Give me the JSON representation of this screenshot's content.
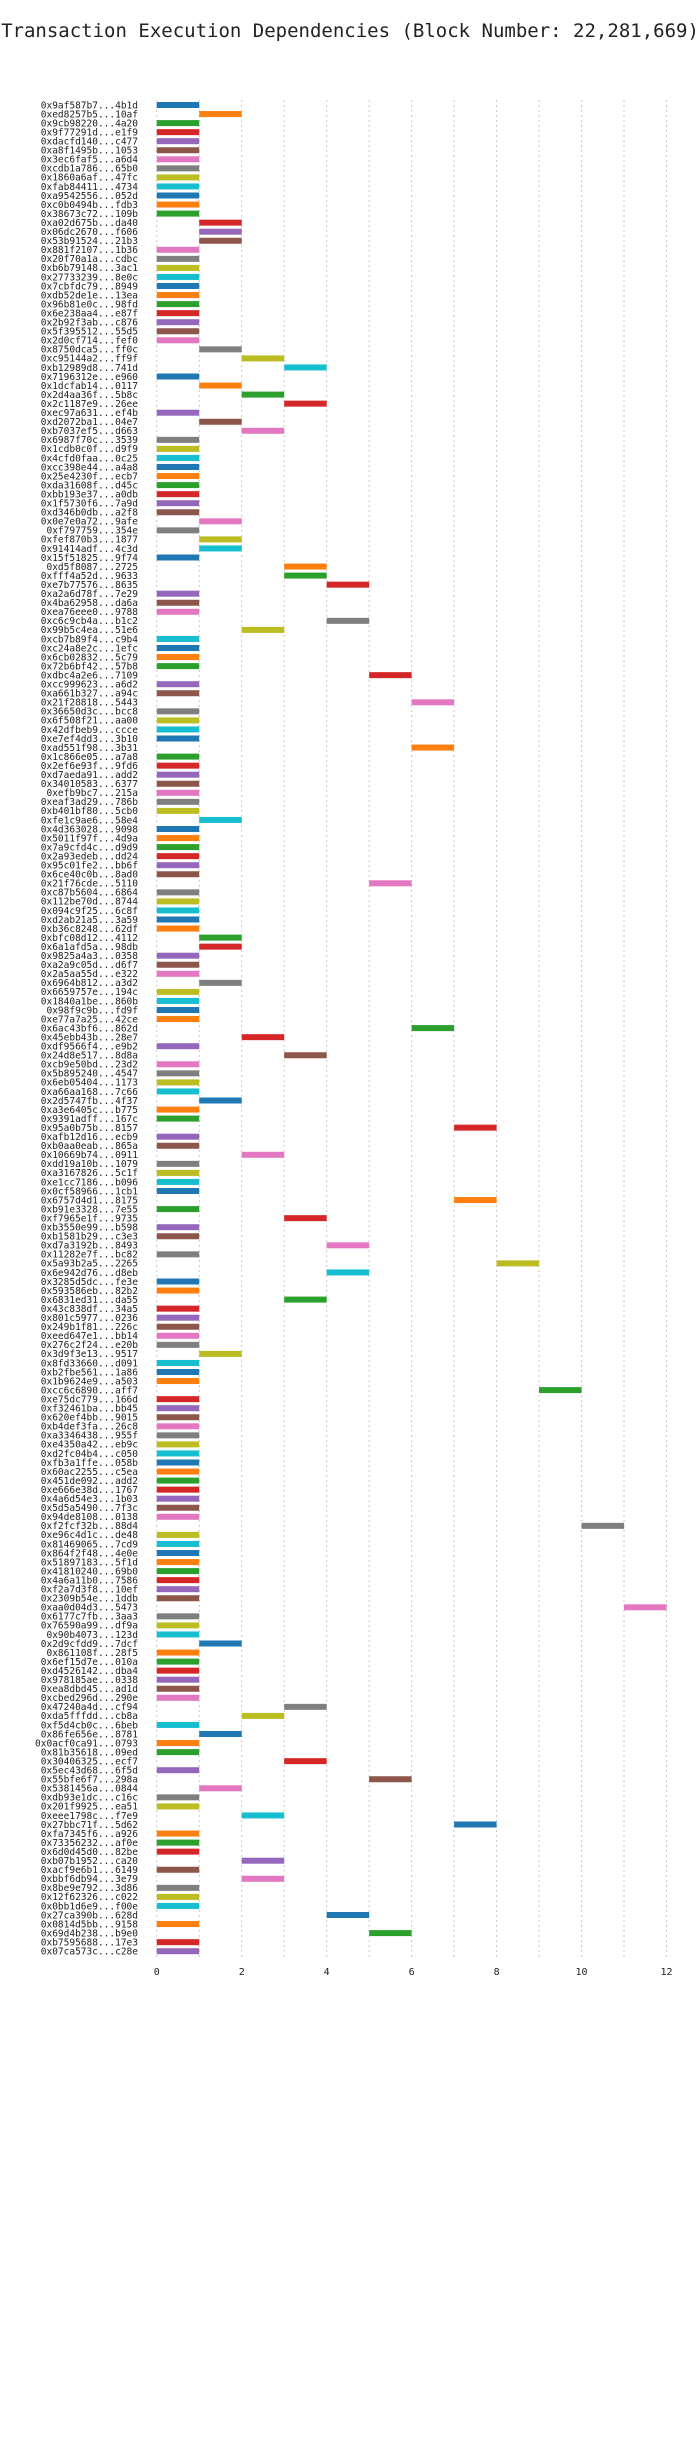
{
  "chart_data": {
    "type": "bar",
    "orientation": "horizontal-gantt",
    "title": "Transaction Execution Dependencies (Block Number: 22,281,669)",
    "xlabel": "",
    "ylabel": "",
    "xlim": [
      -0.3,
      12.6
    ],
    "xticks": [
      0,
      2,
      4,
      6,
      8,
      10,
      12
    ],
    "grid": true,
    "bar_width": 1,
    "palette": [
      "#1f77b4",
      "#ff7f0e",
      "#2ca02c",
      "#d62728",
      "#9467bd",
      "#8c564b",
      "#e377c2",
      "#7f7f7f",
      "#bcbd22",
      "#17becf"
    ],
    "transactions": [
      {
        "label": "0x9af587b7...4b1d",
        "start": 0
      },
      {
        "label": "0xed8257b5...10af",
        "start": 1
      },
      {
        "label": "0x9cb98220...4a20",
        "start": 0
      },
      {
        "label": "0x9f77291d...e1f9",
        "start": 0
      },
      {
        "label": "0xdacfd140...c477",
        "start": 0
      },
      {
        "label": "0xa8f1495b...1053",
        "start": 0
      },
      {
        "label": "0x3ec6faf5...a6d4",
        "start": 0
      },
      {
        "label": "0xcdb1a786...65b0",
        "start": 0
      },
      {
        "label": "0x1860a6af...47fc",
        "start": 0
      },
      {
        "label": "0xfab84411...4734",
        "start": 0
      },
      {
        "label": "0xa9542556...052d",
        "start": 0
      },
      {
        "label": "0xc0b0494b...fdb3",
        "start": 0
      },
      {
        "label": "0x38673c72...109b",
        "start": 0
      },
      {
        "label": "0xa02d675b...da40",
        "start": 1
      },
      {
        "label": "0x06dc2670...f606",
        "start": 1
      },
      {
        "label": "0x53b91524...21b3",
        "start": 1
      },
      {
        "label": "0x881f2107...1b36",
        "start": 0
      },
      {
        "label": "0x20f70a1a...cdbc",
        "start": 0
      },
      {
        "label": "0xb6b79148...3ac1",
        "start": 0
      },
      {
        "label": "0x27733239...8e0c",
        "start": 0
      },
      {
        "label": "0x7cbfdc79...8949",
        "start": 0
      },
      {
        "label": "0xdb52de1e...13ea",
        "start": 0
      },
      {
        "label": "0x96b81e0c...98fd",
        "start": 0
      },
      {
        "label": "0x6e238aa4...e87f",
        "start": 0
      },
      {
        "label": "0x2b92f3ab...c876",
        "start": 0
      },
      {
        "label": "0x5f395512...55d5",
        "start": 0
      },
      {
        "label": "0x2d0cf714...fef0",
        "start": 0
      },
      {
        "label": "0x8750dca5...ff0c",
        "start": 1
      },
      {
        "label": "0xc95144a2...ff9f",
        "start": 2
      },
      {
        "label": "0xb12989d8...741d",
        "start": 3
      },
      {
        "label": "0x7196312e...e960",
        "start": 0
      },
      {
        "label": "0x1dcfab14...0117",
        "start": 1
      },
      {
        "label": "0x2d4aa36f...5b8c",
        "start": 2
      },
      {
        "label": "0x2c1187e9...26ee",
        "start": 3
      },
      {
        "label": "0xec97a631...ef4b",
        "start": 0
      },
      {
        "label": "0xd2072ba1...04e7",
        "start": 1
      },
      {
        "label": "0xb7037ef5...d663",
        "start": 2
      },
      {
        "label": "0x6987f70c...3539",
        "start": 0
      },
      {
        "label": "0x1cdb0c0f...d9f9",
        "start": 0
      },
      {
        "label": "0x4cfd0faa...0c25",
        "start": 0
      },
      {
        "label": "0xcc398e44...a4a8",
        "start": 0
      },
      {
        "label": "0x25e4230f...ecb7",
        "start": 0
      },
      {
        "label": "0xda31608f...d45c",
        "start": 0
      },
      {
        "label": "0xbb193e37...a0db",
        "start": 0
      },
      {
        "label": "0x1f5730f6...7a9d",
        "start": 0
      },
      {
        "label": "0xd346b0db...a2f8",
        "start": 0
      },
      {
        "label": "0x0e7e0a72...9afe",
        "start": 1
      },
      {
        "label": "0xf797759...354e",
        "start": 0
      },
      {
        "label": "0xfef870b3...1877",
        "start": 1
      },
      {
        "label": "0x91414adf...4c3d",
        "start": 1
      },
      {
        "label": "0x15f51825...9f74",
        "start": 0
      },
      {
        "label": "0xd5f8087...2725",
        "start": 3
      },
      {
        "label": "0xfff4a52d...9633",
        "start": 3
      },
      {
        "label": "0xe7b77576...8635",
        "start": 4
      },
      {
        "label": "0xa2a6d78f...7e29",
        "start": 0
      },
      {
        "label": "0x4ba62958...da6a",
        "start": 0
      },
      {
        "label": "0xea76eee0...9788",
        "start": 0
      },
      {
        "label": "0xc6c9cb4a...b1c2",
        "start": 4
      },
      {
        "label": "0x99b5c4ea...51e6",
        "start": 2
      },
      {
        "label": "0xcb7b89f4...c9b4",
        "start": 0
      },
      {
        "label": "0xc24a8e2c...1efc",
        "start": 0
      },
      {
        "label": "0x6cb02832...5c79",
        "start": 0
      },
      {
        "label": "0x72b6bf42...57b8",
        "start": 0
      },
      {
        "label": "0xdbc4a2e6...7109",
        "start": 5
      },
      {
        "label": "0xcc999623...a6d2",
        "start": 0
      },
      {
        "label": "0xa661b327...a94c",
        "start": 0
      },
      {
        "label": "0x21f28818...5443",
        "start": 6
      },
      {
        "label": "0x36650d3c...bcc8",
        "start": 0
      },
      {
        "label": "0x6f508f21...aa00",
        "start": 0
      },
      {
        "label": "0x42dfbeb9...ccce",
        "start": 0
      },
      {
        "label": "0xe7ef4dd3...3b10",
        "start": 0
      },
      {
        "label": "0xad551f98...3b31",
        "start": 6
      },
      {
        "label": "0x1c866e05...a7a8",
        "start": 0
      },
      {
        "label": "0x2ef6e93f...9fd6",
        "start": 0
      },
      {
        "label": "0xd7aeda91...add2",
        "start": 0
      },
      {
        "label": "0x34010583...6377",
        "start": 0
      },
      {
        "label": "0xefb9bc7...215a",
        "start": 0
      },
      {
        "label": "0xeaf3ad29...786b",
        "start": 0
      },
      {
        "label": "0xb401bf80...5cb0",
        "start": 0
      },
      {
        "label": "0xfe1c9ae6...58e4",
        "start": 1
      },
      {
        "label": "0x4d363028...9098",
        "start": 0
      },
      {
        "label": "0x5011f97f...4d9a",
        "start": 0
      },
      {
        "label": "0x7a9cfd4c...d9d9",
        "start": 0
      },
      {
        "label": "0x2a93edeb...dd24",
        "start": 0
      },
      {
        "label": "0x95c01fe2...bb6f",
        "start": 0
      },
      {
        "label": "0x6ce40c0b...8ad0",
        "start": 0
      },
      {
        "label": "0x21f76cde...5110",
        "start": 5
      },
      {
        "label": "0xc87b5604...6864",
        "start": 0
      },
      {
        "label": "0x112be70d...8744",
        "start": 0
      },
      {
        "label": "0x094c9f25...6c8f",
        "start": 0
      },
      {
        "label": "0xd2ab21a5...3a59",
        "start": 0
      },
      {
        "label": "0xb36c8248...62df",
        "start": 0
      },
      {
        "label": "0xbfc08d12...4112",
        "start": 1
      },
      {
        "label": "0x6a1afd5a...98db",
        "start": 1
      },
      {
        "label": "0x9825a4a3...0358",
        "start": 0
      },
      {
        "label": "0xa2a9c05d...d6f7",
        "start": 0
      },
      {
        "label": "0x2a5aa55d...e322",
        "start": 0
      },
      {
        "label": "0x6964b812...a3d2",
        "start": 1
      },
      {
        "label": "0x6659757e...194c",
        "start": 0
      },
      {
        "label": "0x1840a1be...860b",
        "start": 0
      },
      {
        "label": "0x98f9c9b...fd9f",
        "start": 0
      },
      {
        "label": "0xe77a7a25...42ce",
        "start": 0
      },
      {
        "label": "0x6ac43bf6...862d",
        "start": 6
      },
      {
        "label": "0x45ebb43b...28e7",
        "start": 2
      },
      {
        "label": "0xdf9566f4...e9b2",
        "start": 0
      },
      {
        "label": "0x24d8e517...8d8a",
        "start": 3
      },
      {
        "label": "0xcb9e50bd...23d2",
        "start": 0
      },
      {
        "label": "0x5b895240...4547",
        "start": 0
      },
      {
        "label": "0x6eb05404...1173",
        "start": 0
      },
      {
        "label": "0xa66aa168...7c66",
        "start": 0
      },
      {
        "label": "0x2d5747fb...4f37",
        "start": 1
      },
      {
        "label": "0xa3e6405c...b775",
        "start": 0
      },
      {
        "label": "0x9391adff...167c",
        "start": 0
      },
      {
        "label": "0x95a0b75b...8157",
        "start": 7
      },
      {
        "label": "0xafb12d16...ecb9",
        "start": 0
      },
      {
        "label": "0xb0aa0eab...865a",
        "start": 0
      },
      {
        "label": "0x10669b74...0911",
        "start": 2
      },
      {
        "label": "0xdd19a10b...1079",
        "start": 0
      },
      {
        "label": "0xa3167826...5c1f",
        "start": 0
      },
      {
        "label": "0xe1cc7186...b096",
        "start": 0
      },
      {
        "label": "0x0cf58966...1cb1",
        "start": 0
      },
      {
        "label": "0x6757d4d1...8175",
        "start": 7
      },
      {
        "label": "0xb91e3328...7e55",
        "start": 0
      },
      {
        "label": "0xf7965e1f...9735",
        "start": 3
      },
      {
        "label": "0xb3550e99...b598",
        "start": 0
      },
      {
        "label": "0xb1581b29...c3e3",
        "start": 0
      },
      {
        "label": "0xd7a3192b...8493",
        "start": 4
      },
      {
        "label": "0x11282e7f...bc82",
        "start": 0
      },
      {
        "label": "0x5a93b2a5...2265",
        "start": 8
      },
      {
        "label": "0x6e942d76...d8eb",
        "start": 4
      },
      {
        "label": "0x3285d5dc...fe3e",
        "start": 0
      },
      {
        "label": "0x593586eb...82b2",
        "start": 0
      },
      {
        "label": "0x6831ed31...da55",
        "start": 3
      },
      {
        "label": "0x43c838df...34a5",
        "start": 0
      },
      {
        "label": "0x801c5977...0236",
        "start": 0
      },
      {
        "label": "0x249b1f81...226c",
        "start": 0
      },
      {
        "label": "0xeed647e1...bb14",
        "start": 0
      },
      {
        "label": "0x276c2f24...e20b",
        "start": 0
      },
      {
        "label": "0x3d9f3e13...9517",
        "start": 1
      },
      {
        "label": "0x8fd33660...d091",
        "start": 0
      },
      {
        "label": "0xb2fbe561...1a86",
        "start": 0
      },
      {
        "label": "0x1b9624e9...a503",
        "start": 0
      },
      {
        "label": "0xcc6c6890...aff7",
        "start": 9
      },
      {
        "label": "0xe75dc779...166d",
        "start": 0
      },
      {
        "label": "0xf32461ba...bb45",
        "start": 0
      },
      {
        "label": "0x620ef4bb...9015",
        "start": 0
      },
      {
        "label": "0xb4def3fa...26c8",
        "start": 0
      },
      {
        "label": "0xa3346438...955f",
        "start": 0
      },
      {
        "label": "0xe4350a42...eb9c",
        "start": 0
      },
      {
        "label": "0xd2fc04b4...c050",
        "start": 0
      },
      {
        "label": "0xfb3a1ffe...058b",
        "start": 0
      },
      {
        "label": "0x60ac2255...c5ea",
        "start": 0
      },
      {
        "label": "0x451de092...add2",
        "start": 0
      },
      {
        "label": "0xe666e38d...1767",
        "start": 0
      },
      {
        "label": "0x4a6d54e3...1b03",
        "start": 0
      },
      {
        "label": "0x5d5a5490...7f3c",
        "start": 0
      },
      {
        "label": "0x94de8108...0138",
        "start": 0
      },
      {
        "label": "0xf2fcf32b...88d4",
        "start": 10
      },
      {
        "label": "0xe96c4d1c...de48",
        "start": 0
      },
      {
        "label": "0x81469065...7cd9",
        "start": 0
      },
      {
        "label": "0x864f2f48...4e0e",
        "start": 0
      },
      {
        "label": "0x51897183...5f1d",
        "start": 0
      },
      {
        "label": "0x41810240...69b0",
        "start": 0
      },
      {
        "label": "0x4a6a11b0...7586",
        "start": 0
      },
      {
        "label": "0xf2a7d3f8...10ef",
        "start": 0
      },
      {
        "label": "0x2309b54e...1ddb",
        "start": 0
      },
      {
        "label": "0xaa0d04d3...5473",
        "start": 11
      },
      {
        "label": "0x6177c7fb...3aa3",
        "start": 0
      },
      {
        "label": "0x76590a99...df9a",
        "start": 0
      },
      {
        "label": "0x90b4073...123d",
        "start": 0
      },
      {
        "label": "0x2d9cfdd9...7dcf",
        "start": 1
      },
      {
        "label": "0x861108f...28f5",
        "start": 0
      },
      {
        "label": "0x6ef15d7e...010a",
        "start": 0
      },
      {
        "label": "0xd4526142...dba4",
        "start": 0
      },
      {
        "label": "0x978185ae...0338",
        "start": 0
      },
      {
        "label": "0xea8dbd45...ad1d",
        "start": 0
      },
      {
        "label": "0xcbed296d...290e",
        "start": 0
      },
      {
        "label": "0x47240a4d...cf94",
        "start": 3
      },
      {
        "label": "0xda5fffdd...cb8a",
        "start": 2
      },
      {
        "label": "0xf5d4cb0c...6beb",
        "start": 0
      },
      {
        "label": "0x86fe656e...8781",
        "start": 1
      },
      {
        "label": "0x0acf0ca91...0793",
        "start": 0
      },
      {
        "label": "0x81b35618...09ed",
        "start": 0
      },
      {
        "label": "0x30406325...ecf7",
        "start": 3
      },
      {
        "label": "0x5ec43d68...6f5d",
        "start": 0
      },
      {
        "label": "0x55bfe6f7...298a",
        "start": 5
      },
      {
        "label": "0x5381456a...0844",
        "start": 1
      },
      {
        "label": "0xdb93e1dc...c16c",
        "start": 0
      },
      {
        "label": "0x201f9925...ea51",
        "start": 0
      },
      {
        "label": "0xeee1798c...f7e9",
        "start": 2
      },
      {
        "label": "0x27bbc71f...5d62",
        "start": 7
      },
      {
        "label": "0xfa7345f6...a926",
        "start": 0
      },
      {
        "label": "0x73356232...af0e",
        "start": 0
      },
      {
        "label": "0x6d0d45d0...82be",
        "start": 0
      },
      {
        "label": "0xb07b1952...ca20",
        "start": 2
      },
      {
        "label": "0xacf9e6b1...6149",
        "start": 0
      },
      {
        "label": "0xbbf6db94...3e79",
        "start": 2
      },
      {
        "label": "0x8be9e792...3d86",
        "start": 0
      },
      {
        "label": "0x12f62326...c022",
        "start": 0
      },
      {
        "label": "0x0bb1d6e9...f00e",
        "start": 0
      },
      {
        "label": "0x27ca390b...628d",
        "start": 4
      },
      {
        "label": "0x0814d5bb...9158",
        "start": 0
      },
      {
        "label": "0x69d4b238...b9e0",
        "start": 5
      },
      {
        "label": "0xb7595688...17e3",
        "start": 0
      },
      {
        "label": "0x07ca573c...c28e",
        "start": 0
      }
    ]
  }
}
